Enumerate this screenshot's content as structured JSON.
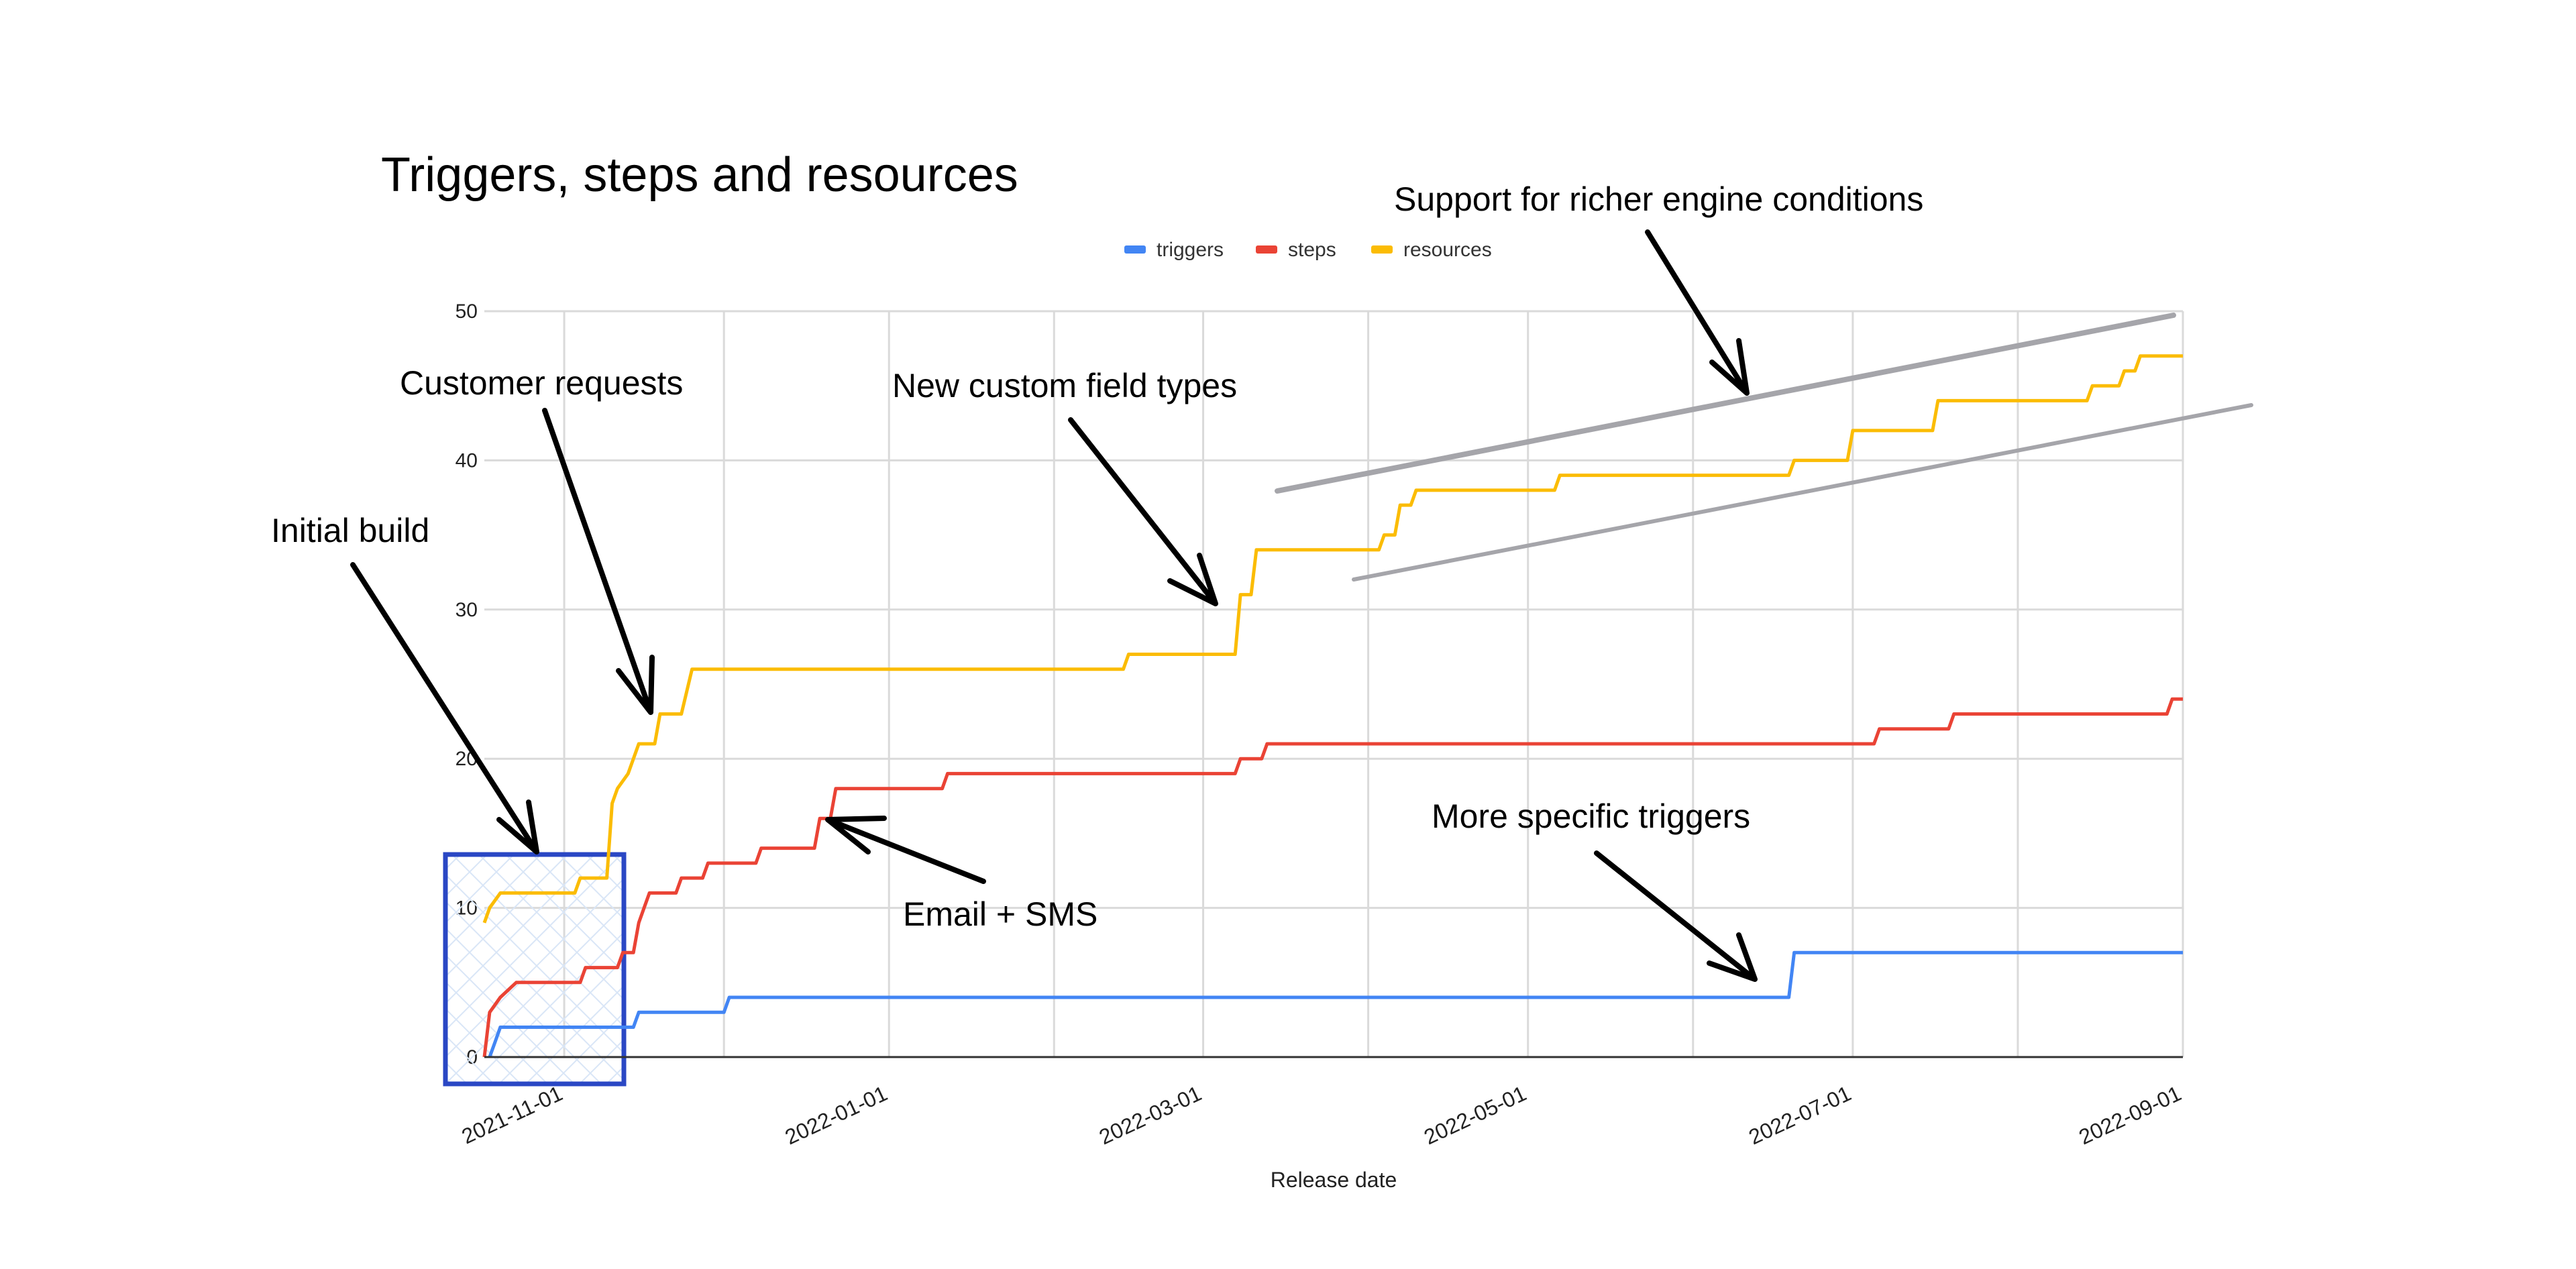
{
  "chart_data": {
    "type": "line",
    "title": "Triggers, steps and resources",
    "xlabel": "Release date",
    "ylabel": "",
    "x_type": "date",
    "xlim": [
      "2021-10-17",
      "2022-09-01"
    ],
    "ylim": [
      0,
      50
    ],
    "y_ticks": [
      0,
      10,
      20,
      30,
      40,
      50
    ],
    "x_ticks": [
      "2021-11-01",
      "2022-01-01",
      "2022-03-01",
      "2022-05-01",
      "2022-07-01",
      "2022-09-01"
    ],
    "grid": true,
    "legend_position": "top",
    "series": [
      {
        "name": "triggers",
        "color": "#4285f4",
        "points": [
          [
            "2021-10-18",
            0
          ],
          [
            "2021-10-19",
            1
          ],
          [
            "2021-10-20",
            2
          ],
          [
            "2021-11-14",
            2
          ],
          [
            "2021-11-15",
            3
          ],
          [
            "2021-12-01",
            3
          ],
          [
            "2021-12-02",
            4
          ],
          [
            "2022-06-19",
            4
          ],
          [
            "2022-06-20",
            7
          ],
          [
            "2022-09-01",
            7
          ]
        ]
      },
      {
        "name": "steps",
        "color": "#ea4335",
        "points": [
          [
            "2021-10-17",
            0
          ],
          [
            "2021-10-18",
            3
          ],
          [
            "2021-10-20",
            4
          ],
          [
            "2021-10-23",
            5
          ],
          [
            "2021-11-04",
            5
          ],
          [
            "2021-11-05",
            6
          ],
          [
            "2021-11-11",
            6
          ],
          [
            "2021-11-12",
            7
          ],
          [
            "2021-11-14",
            7
          ],
          [
            "2021-11-15",
            9
          ],
          [
            "2021-11-16",
            10
          ],
          [
            "2021-11-17",
            11
          ],
          [
            "2021-11-22",
            11
          ],
          [
            "2021-11-23",
            12
          ],
          [
            "2021-11-27",
            12
          ],
          [
            "2021-11-28",
            13
          ],
          [
            "2021-12-07",
            13
          ],
          [
            "2021-12-08",
            14
          ],
          [
            "2021-12-18",
            14
          ],
          [
            "2021-12-19",
            16
          ],
          [
            "2021-12-21",
            16
          ],
          [
            "2021-12-22",
            18
          ],
          [
            "2022-01-11",
            18
          ],
          [
            "2022-01-12",
            19
          ],
          [
            "2022-03-07",
            19
          ],
          [
            "2022-03-08",
            20
          ],
          [
            "2022-03-12",
            20
          ],
          [
            "2022-03-13",
            21
          ],
          [
            "2022-07-05",
            21
          ],
          [
            "2022-07-06",
            22
          ],
          [
            "2022-07-19",
            22
          ],
          [
            "2022-07-20",
            23
          ],
          [
            "2022-08-29",
            23
          ],
          [
            "2022-08-30",
            24
          ],
          [
            "2022-09-01",
            24
          ]
        ]
      },
      {
        "name": "resources",
        "color": "#fbbc04",
        "points": [
          [
            "2021-10-17",
            9
          ],
          [
            "2021-10-18",
            10
          ],
          [
            "2021-10-20",
            11
          ],
          [
            "2021-11-03",
            11
          ],
          [
            "2021-11-04",
            12
          ],
          [
            "2021-11-09",
            12
          ],
          [
            "2021-11-10",
            17
          ],
          [
            "2021-11-11",
            18
          ],
          [
            "2021-11-13",
            19
          ],
          [
            "2021-11-15",
            21
          ],
          [
            "2021-11-18",
            21
          ],
          [
            "2021-11-19",
            23
          ],
          [
            "2021-11-23",
            23
          ],
          [
            "2021-11-25",
            26
          ],
          [
            "2022-02-14",
            26
          ],
          [
            "2022-02-15",
            27
          ],
          [
            "2022-03-07",
            27
          ],
          [
            "2022-03-08",
            31
          ],
          [
            "2022-03-10",
            31
          ],
          [
            "2022-03-11",
            34
          ],
          [
            "2022-04-03",
            34
          ],
          [
            "2022-04-04",
            35
          ],
          [
            "2022-04-06",
            35
          ],
          [
            "2022-04-07",
            37
          ],
          [
            "2022-04-09",
            37
          ],
          [
            "2022-04-10",
            38
          ],
          [
            "2022-05-06",
            38
          ],
          [
            "2022-05-07",
            39
          ],
          [
            "2022-06-19",
            39
          ],
          [
            "2022-06-20",
            40
          ],
          [
            "2022-06-30",
            40
          ],
          [
            "2022-07-01",
            42
          ],
          [
            "2022-07-16",
            42
          ],
          [
            "2022-07-17",
            44
          ],
          [
            "2022-08-14",
            44
          ],
          [
            "2022-08-15",
            45
          ],
          [
            "2022-08-20",
            45
          ],
          [
            "2022-08-21",
            46
          ],
          [
            "2022-08-23",
            46
          ],
          [
            "2022-08-24",
            47
          ],
          [
            "2022-09-01",
            47
          ]
        ]
      }
    ],
    "annotations": [
      "Initial build",
      "Customer requests",
      "New custom field types",
      "Email + SMS",
      "Support for richer engine conditions",
      "More specific triggers"
    ],
    "colors": {
      "grid": "#dadada",
      "axis": "#333333",
      "highlight_box": "#2a47c4",
      "trend_lines": "#a5a5aa"
    }
  }
}
